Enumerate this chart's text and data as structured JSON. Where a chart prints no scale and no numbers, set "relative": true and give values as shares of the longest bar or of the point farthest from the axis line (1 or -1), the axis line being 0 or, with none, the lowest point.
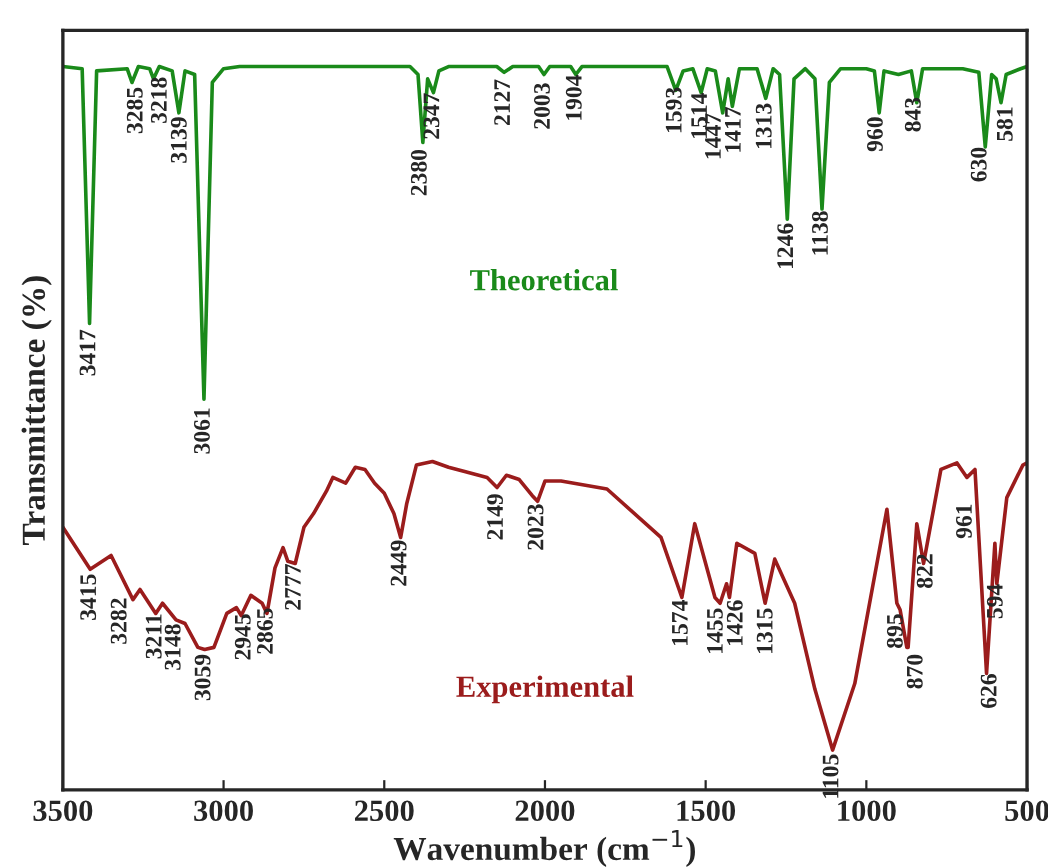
{
  "chart_data": {
    "type": "line",
    "xlabel": "Wavenumber (cm$^{−1}$)",
    "ylabel": "Transmittance (%)",
    "relative": true,
    "tick_labels": "x",
    "xlim": [
      3500,
      500
    ],
    "xticks": [
      3500,
      3000,
      2500,
      2000,
      1500,
      1000,
      500
    ],
    "series": [
      {
        "name": "Theoretical",
        "color": "#1a8a1a",
        "x": [
          3500,
          3440,
          3417,
          3395,
          3300,
          3285,
          3265,
          3230,
          3218,
          3200,
          3160,
          3139,
          3120,
          3090,
          3061,
          3035,
          3000,
          2950,
          2420,
          2395,
          2380,
          2365,
          2347,
          2330,
          2300,
          2150,
          2127,
          2100,
          2020,
          2003,
          1985,
          1920,
          1904,
          1885,
          1620,
          1593,
          1570,
          1540,
          1514,
          1495,
          1470,
          1447,
          1430,
          1417,
          1395,
          1340,
          1313,
          1290,
          1270,
          1246,
          1225,
          1190,
          1160,
          1138,
          1115,
          1080,
          1000,
          975,
          960,
          945,
          900,
          860,
          843,
          825,
          700,
          650,
          630,
          610,
          596,
          581,
          565,
          520,
          500
        ],
        "values": [
          1.0,
          0.997,
          0.645,
          0.994,
          0.997,
          0.978,
          1.0,
          0.997,
          0.983,
          1.0,
          0.994,
          0.936,
          0.994,
          0.989,
          0.54,
          0.978,
          0.997,
          1.0,
          1.0,
          0.989,
          0.895,
          0.983,
          0.964,
          0.994,
          1.0,
          1.0,
          0.992,
          1.0,
          1.0,
          0.989,
          1.0,
          1.0,
          0.989,
          1.0,
          1.0,
          0.967,
          0.994,
          0.997,
          0.964,
          0.997,
          0.994,
          0.936,
          0.983,
          0.945,
          0.997,
          0.997,
          0.956,
          0.997,
          0.989,
          0.789,
          0.983,
          0.997,
          0.983,
          0.803,
          0.978,
          0.997,
          0.997,
          0.994,
          0.936,
          0.994,
          0.989,
          0.994,
          0.95,
          0.997,
          0.997,
          0.992,
          0.889,
          0.989,
          0.983,
          0.95,
          0.989,
          0.997,
          1.0
        ]
      },
      {
        "name": "Experimental",
        "color": "#9b1c1c",
        "x": [
          3500,
          3415,
          3350,
          3282,
          3260,
          3211,
          3190,
          3148,
          3120,
          3080,
          3059,
          3030,
          2990,
          2960,
          2945,
          2915,
          2880,
          2865,
          2840,
          2815,
          2800,
          2777,
          2750,
          2720,
          2680,
          2660,
          2620,
          2590,
          2560,
          2530,
          2500,
          2470,
          2449,
          2430,
          2400,
          2350,
          2300,
          2250,
          2180,
          2149,
          2120,
          2080,
          2040,
          2023,
          2000,
          1950,
          1807,
          1639,
          1574,
          1534,
          1471,
          1455,
          1435,
          1426,
          1403,
          1347,
          1315,
          1285,
          1223,
          1160,
          1105,
          1036,
          936,
          905,
          895,
          874,
          870,
          843,
          822,
          768,
          718,
          687,
          662,
          626,
          600,
          594,
          563,
          513,
          500
        ],
        "values": [
          0.363,
          0.305,
          0.324,
          0.263,
          0.277,
          0.244,
          0.258,
          0.235,
          0.23,
          0.197,
          0.194,
          0.197,
          0.244,
          0.252,
          0.241,
          0.269,
          0.258,
          0.244,
          0.307,
          0.335,
          0.316,
          0.313,
          0.363,
          0.382,
          0.413,
          0.432,
          0.424,
          0.446,
          0.443,
          0.424,
          0.41,
          0.382,
          0.349,
          0.396,
          0.449,
          0.454,
          0.446,
          0.44,
          0.432,
          0.418,
          0.435,
          0.429,
          0.407,
          0.399,
          0.427,
          0.427,
          0.416,
          0.349,
          0.266,
          0.368,
          0.266,
          0.258,
          0.285,
          0.266,
          0.341,
          0.327,
          0.258,
          0.319,
          0.258,
          0.139,
          0.055,
          0.147,
          0.388,
          0.258,
          0.249,
          0.197,
          0.197,
          0.368,
          0.313,
          0.443,
          0.452,
          0.432,
          0.443,
          0.161,
          0.341,
          0.285,
          0.404,
          0.449,
          0.452
        ]
      }
    ],
    "annotations": [
      {
        "text": "3417",
        "x": 3417,
        "y": 0.637
      },
      {
        "text": "3285",
        "x": 3270,
        "y": 0.972
      },
      {
        "text": "3218",
        "x": 3195,
        "y": 0.986
      },
      {
        "text": "3139",
        "x": 3133,
        "y": 0.931
      },
      {
        "text": "3061",
        "x": 3061,
        "y": 0.529
      },
      {
        "text": "2380",
        "x": 2386,
        "y": 0.886
      },
      {
        "text": "2347",
        "x": 2347,
        "y": 0.964
      },
      {
        "text": "2127",
        "x": 2127,
        "y": 0.983
      },
      {
        "text": "2003",
        "x": 2003,
        "y": 0.978
      },
      {
        "text": "1904",
        "x": 1904,
        "y": 0.989
      },
      {
        "text": "1593",
        "x": 1593,
        "y": 0.972
      },
      {
        "text": "1514",
        "x": 1514,
        "y": 0.964
      },
      {
        "text": "1447",
        "x": 1471,
        "y": 0.936
      },
      {
        "text": "1417",
        "x": 1409,
        "y": 0.945
      },
      {
        "text": "1313",
        "x": 1313,
        "y": 0.95
      },
      {
        "text": "1246",
        "x": 1246,
        "y": 0.784
      },
      {
        "text": "1138",
        "x": 1138,
        "y": 0.801
      },
      {
        "text": "960",
        "x": 967,
        "y": 0.931
      },
      {
        "text": "843",
        "x": 849,
        "y": 0.958
      },
      {
        "text": "630",
        "x": 644,
        "y": 0.889
      },
      {
        "text": "581",
        "x": 563,
        "y": 0.945
      },
      {
        "text": "3415",
        "x": 3415,
        "y": 0.299
      },
      {
        "text": "3282",
        "x": 3320,
        "y": 0.266
      },
      {
        "text": "3211",
        "x": 3211,
        "y": 0.244
      },
      {
        "text": "3148",
        "x": 3152,
        "y": 0.23
      },
      {
        "text": "3059",
        "x": 3059,
        "y": 0.188
      },
      {
        "text": "2945",
        "x": 2934,
        "y": 0.244
      },
      {
        "text": "2865",
        "x": 2865,
        "y": 0.252
      },
      {
        "text": "2777",
        "x": 2778,
        "y": 0.313
      },
      {
        "text": "2449",
        "x": 2449,
        "y": 0.346
      },
      {
        "text": "2149",
        "x": 2149,
        "y": 0.41
      },
      {
        "text": "2023",
        "x": 2023,
        "y": 0.396
      },
      {
        "text": "1574",
        "x": 1574,
        "y": 0.263
      },
      {
        "text": "1455",
        "x": 1465,
        "y": 0.252
      },
      {
        "text": "1426",
        "x": 1403,
        "y": 0.263
      },
      {
        "text": "1315",
        "x": 1310,
        "y": 0.252
      },
      {
        "text": "1105",
        "x": 1105,
        "y": 0.05
      },
      {
        "text": "895",
        "x": 905,
        "y": 0.244
      },
      {
        "text": "870",
        "x": 843,
        "y": 0.188
      },
      {
        "text": "822",
        "x": 812,
        "y": 0.327
      },
      {
        "text": "961",
        "x": 690,
        "y": 0.396
      },
      {
        "text": "626",
        "x": 613,
        "y": 0.161
      },
      {
        "text": "594",
        "x": 594,
        "y": 0.285
      }
    ]
  }
}
